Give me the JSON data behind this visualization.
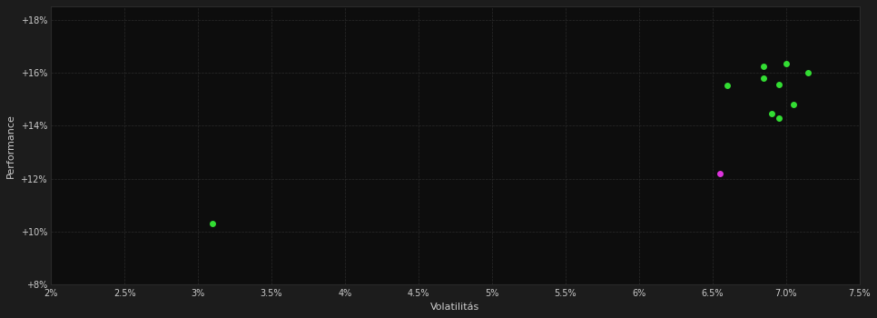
{
  "background_color": "#1c1c1c",
  "plot_bg_color": "#0d0d0d",
  "grid_color": "#2a2a2a",
  "text_color": "#cccccc",
  "xlabel": "Volatilitás",
  "ylabel": "Performance",
  "xlim": [
    0.02,
    0.075
  ],
  "ylim": [
    0.08,
    0.185
  ],
  "xtick_values": [
    0.02,
    0.025,
    0.03,
    0.035,
    0.04,
    0.045,
    0.05,
    0.055,
    0.06,
    0.065,
    0.07,
    0.075
  ],
  "ytick_values": [
    0.08,
    0.1,
    0.12,
    0.14,
    0.16,
    0.18
  ],
  "green_points": [
    [
      0.031,
      0.103
    ],
    [
      0.066,
      0.155
    ],
    [
      0.0685,
      0.1625
    ],
    [
      0.0685,
      0.158
    ],
    [
      0.07,
      0.1635
    ],
    [
      0.0695,
      0.1555
    ],
    [
      0.069,
      0.1445
    ],
    [
      0.0695,
      0.143
    ],
    [
      0.0715,
      0.16
    ],
    [
      0.0705,
      0.148
    ]
  ],
  "magenta_points": [
    [
      0.0655,
      0.122
    ]
  ],
  "point_size": 25,
  "green_color": "#33dd33",
  "magenta_color": "#dd33dd",
  "font_size_axis": 8,
  "font_size_tick": 7,
  "fig_width": 9.66,
  "fig_height": 3.5,
  "dpi": 100
}
